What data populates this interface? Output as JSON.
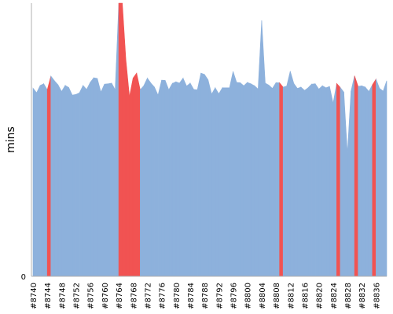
{
  "chart_data": {
    "type": "area",
    "ylabel": "mins",
    "xlabel": "",
    "title": "",
    "ylim": [
      0,
      82
    ],
    "y_ticks": [
      0
    ],
    "x_start": 8740,
    "x_end": 8840,
    "x_tick_labels": [
      "#8740",
      "#8744",
      "#8748",
      "#8752",
      "#8756",
      "#8760",
      "#8764",
      "#8768",
      "#8772",
      "#8776",
      "#8780",
      "#8784",
      "#8788",
      "#8792",
      "#8796",
      "#8800",
      "#8804",
      "#8808",
      "#8812",
      "#8816",
      "#8820",
      "#8824",
      "#8828",
      "#8832",
      "#8836"
    ],
    "values": [
      56.5,
      55.1,
      57.3,
      57.8,
      56.0,
      60.1,
      58.7,
      57.5,
      55.5,
      57.3,
      56.7,
      54.4,
      54.6,
      55.1,
      57.3,
      56.1,
      58.2,
      59.6,
      59.4,
      55.3,
      57.7,
      57.8,
      58.0,
      56.0,
      82.0,
      82.0,
      65.0,
      54.0,
      59.5,
      61.0,
      56.0,
      57.2,
      59.5,
      58.0,
      56.8,
      54.4,
      58.9,
      58.8,
      56.0,
      57.9,
      58.4,
      58.0,
      59.5,
      57.1,
      58.0,
      56.1,
      56.0,
      61.0,
      60.6,
      59.0,
      54.7,
      56.6,
      54.8,
      56.6,
      56.6,
      56.6,
      61.5,
      58.2,
      58.1,
      57.2,
      58.2,
      57.8,
      57.2,
      56.2,
      76.8,
      58.0,
      57.4,
      56.4,
      58.1,
      58.1,
      56.8,
      57.1,
      61.6,
      57.9,
      56.4,
      56.8,
      55.8,
      56.6,
      57.7,
      57.8,
      56.2,
      57.2,
      56.6,
      57.0,
      52.0,
      57.9,
      56.7,
      55.3,
      37.0,
      55.6,
      60.2,
      57.0,
      57.2,
      56.8,
      55.5,
      57.5,
      59.2,
      56.4,
      55.6,
      58.7
    ],
    "failed_builds": [
      8744,
      8764,
      8765,
      8766,
      8767,
      8768,
      8769,
      8809,
      8825,
      8830,
      8835
    ],
    "colors": {
      "success": "#8db1dc",
      "failure": "#f15352",
      "axis": "#b0b0b0",
      "text": "#000000"
    },
    "grid": false,
    "legend": "none"
  }
}
